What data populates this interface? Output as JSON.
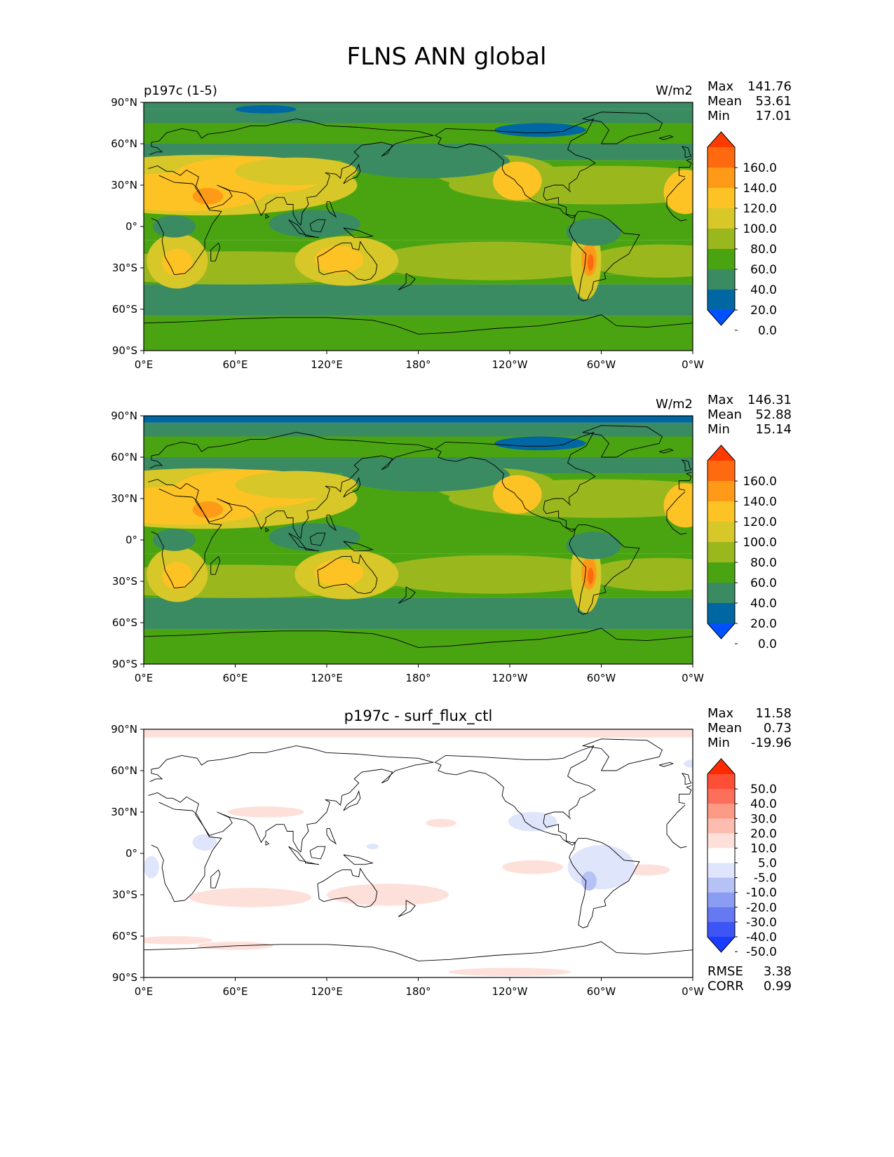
{
  "figure": {
    "title": "FLNS ANN global"
  },
  "chart_data": [
    {
      "type": "heatmap",
      "id": "test",
      "title": "",
      "left_title": "p197c (1-5)",
      "units": "W/m2",
      "stats": [
        [
          "Max",
          "141.76"
        ],
        [
          "Mean",
          "53.61"
        ],
        [
          "Min",
          "17.01"
        ]
      ],
      "xticks": [
        "0°E",
        "60°E",
        "120°E",
        "180°",
        "120°W",
        "60°W",
        "0°W"
      ],
      "yticks": [
        "90°N",
        "60°N",
        "30°N",
        "0°",
        "30°S",
        "60°S",
        "90°S"
      ],
      "xlim": [
        0,
        360
      ],
      "ylim": [
        -90,
        90
      ],
      "colorbar": {
        "labels": [
          "160.0",
          "140.0",
          "120.0",
          "100.0",
          "80.0",
          "60.0",
          "40.0",
          "20.0",
          "0.0"
        ],
        "colors": [
          "#ff3a00",
          "#ff6a10",
          "#ff9a18",
          "#fdc324",
          "#d7c728",
          "#9ab81e",
          "#4aa412",
          "#3a8a62",
          "#0067a3",
          "#0050ff"
        ],
        "extend": "both"
      }
    },
    {
      "type": "heatmap",
      "id": "ref",
      "title": "",
      "left_title": "",
      "units": "W/m2",
      "stats": [
        [
          "Max",
          "146.31"
        ],
        [
          "Mean",
          "52.88"
        ],
        [
          "Min",
          "15.14"
        ]
      ],
      "xticks": [
        "0°E",
        "60°E",
        "120°E",
        "180°",
        "120°W",
        "60°W",
        "0°W"
      ],
      "yticks": [
        "90°N",
        "60°N",
        "30°N",
        "0°",
        "30°S",
        "60°S",
        "90°S"
      ],
      "xlim": [
        0,
        360
      ],
      "ylim": [
        -90,
        90
      ],
      "colorbar": {
        "labels": [
          "160.0",
          "140.0",
          "120.0",
          "100.0",
          "80.0",
          "60.0",
          "40.0",
          "20.0",
          "0.0"
        ],
        "colors": [
          "#ff3a00",
          "#ff6a10",
          "#ff9a18",
          "#fdc324",
          "#d7c728",
          "#9ab81e",
          "#4aa412",
          "#3a8a62",
          "#0067a3",
          "#0050ff"
        ],
        "extend": "both"
      }
    },
    {
      "type": "heatmap",
      "id": "diff",
      "title": "p197c - surf_flux_ctl",
      "left_title": "",
      "units": "",
      "stats": [
        [
          "Max",
          "11.58"
        ],
        [
          "Mean",
          "0.73"
        ],
        [
          "Min",
          "-19.96"
        ]
      ],
      "extra_stats": [
        [
          "RMSE",
          "3.38"
        ],
        [
          "CORR",
          "0.99"
        ]
      ],
      "xticks": [
        "0°E",
        "60°E",
        "120°E",
        "180°",
        "120°W",
        "60°W",
        "0°W"
      ],
      "yticks": [
        "90°N",
        "60°N",
        "30°N",
        "0°",
        "30°S",
        "60°S",
        "90°S"
      ],
      "xlim": [
        0,
        360
      ],
      "ylim": [
        -90,
        90
      ],
      "colorbar": {
        "labels": [
          "50.0",
          "40.0",
          "30.0",
          "20.0",
          "10.0",
          "5.0",
          "-5.0",
          "-10.0",
          "-20.0",
          "-30.0",
          "-40.0",
          "-50.0"
        ],
        "colors": [
          "#ff2a00",
          "#fd4e36",
          "#fc6f5a",
          "#fc9a86",
          "#fcbcb0",
          "#fde0da",
          "#ffffff",
          "#dfe5fb",
          "#b6c1f6",
          "#8b9df2",
          "#6579f2",
          "#3d55f6",
          "#1a3cff"
        ],
        "extend": "both"
      }
    }
  ]
}
